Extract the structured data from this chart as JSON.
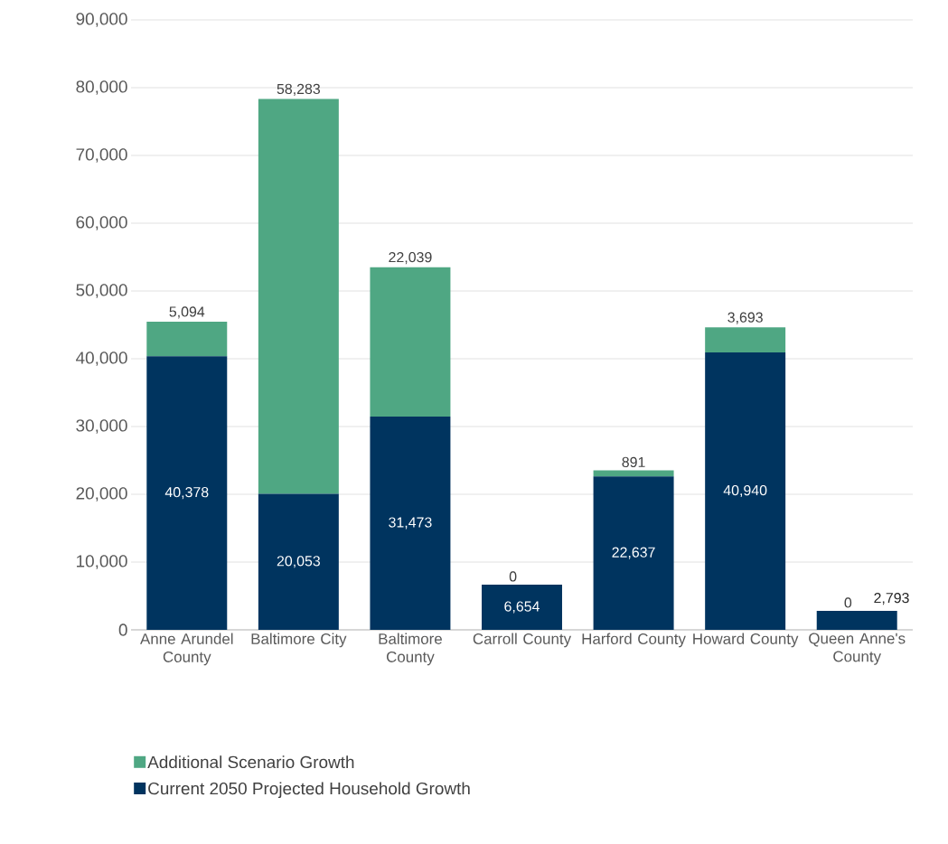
{
  "chart_data": {
    "type": "bar",
    "stacked": true,
    "categories": [
      "Anne Arundel County",
      "Baltimore City",
      "Baltimore County",
      "Carroll County",
      "Harford County",
      "Howard County",
      "Queen Anne's County"
    ],
    "series": [
      {
        "name": "Current 2050 Projected Household Growth",
        "color": "#00345f",
        "values": [
          40378,
          20053,
          31473,
          6654,
          22637,
          40940,
          2793
        ],
        "value_labels": [
          "40,378",
          "20,053",
          "31,473",
          "6,654",
          "22,637",
          "40,940",
          "2,793"
        ]
      },
      {
        "name": "Additional Scenario Growth",
        "color": "#4fa783",
        "values": [
          5094,
          58283,
          22039,
          0,
          891,
          3693,
          0
        ],
        "value_labels": [
          "5,094",
          "58,283",
          "22,039",
          "0",
          "891",
          "3,693",
          "0"
        ]
      }
    ],
    "ylim": [
      0,
      90000
    ],
    "yticks": [
      0,
      {
        "value": 10000,
        "label": "10,000"
      },
      {
        "value": 20000,
        "label": "20,000"
      },
      {
        "value": 30000,
        "label": "30,000"
      },
      {
        "value": 40000,
        "label": "40,000"
      },
      {
        "value": 50000,
        "label": "50,000"
      },
      {
        "value": 60000,
        "label": "60,000"
      },
      {
        "value": 70000,
        "label": "70,000"
      },
      {
        "value": 80000,
        "label": "80,000"
      },
      {
        "value": 90000,
        "label": "90,000"
      }
    ],
    "grid": "y",
    "legend": "bottom"
  }
}
